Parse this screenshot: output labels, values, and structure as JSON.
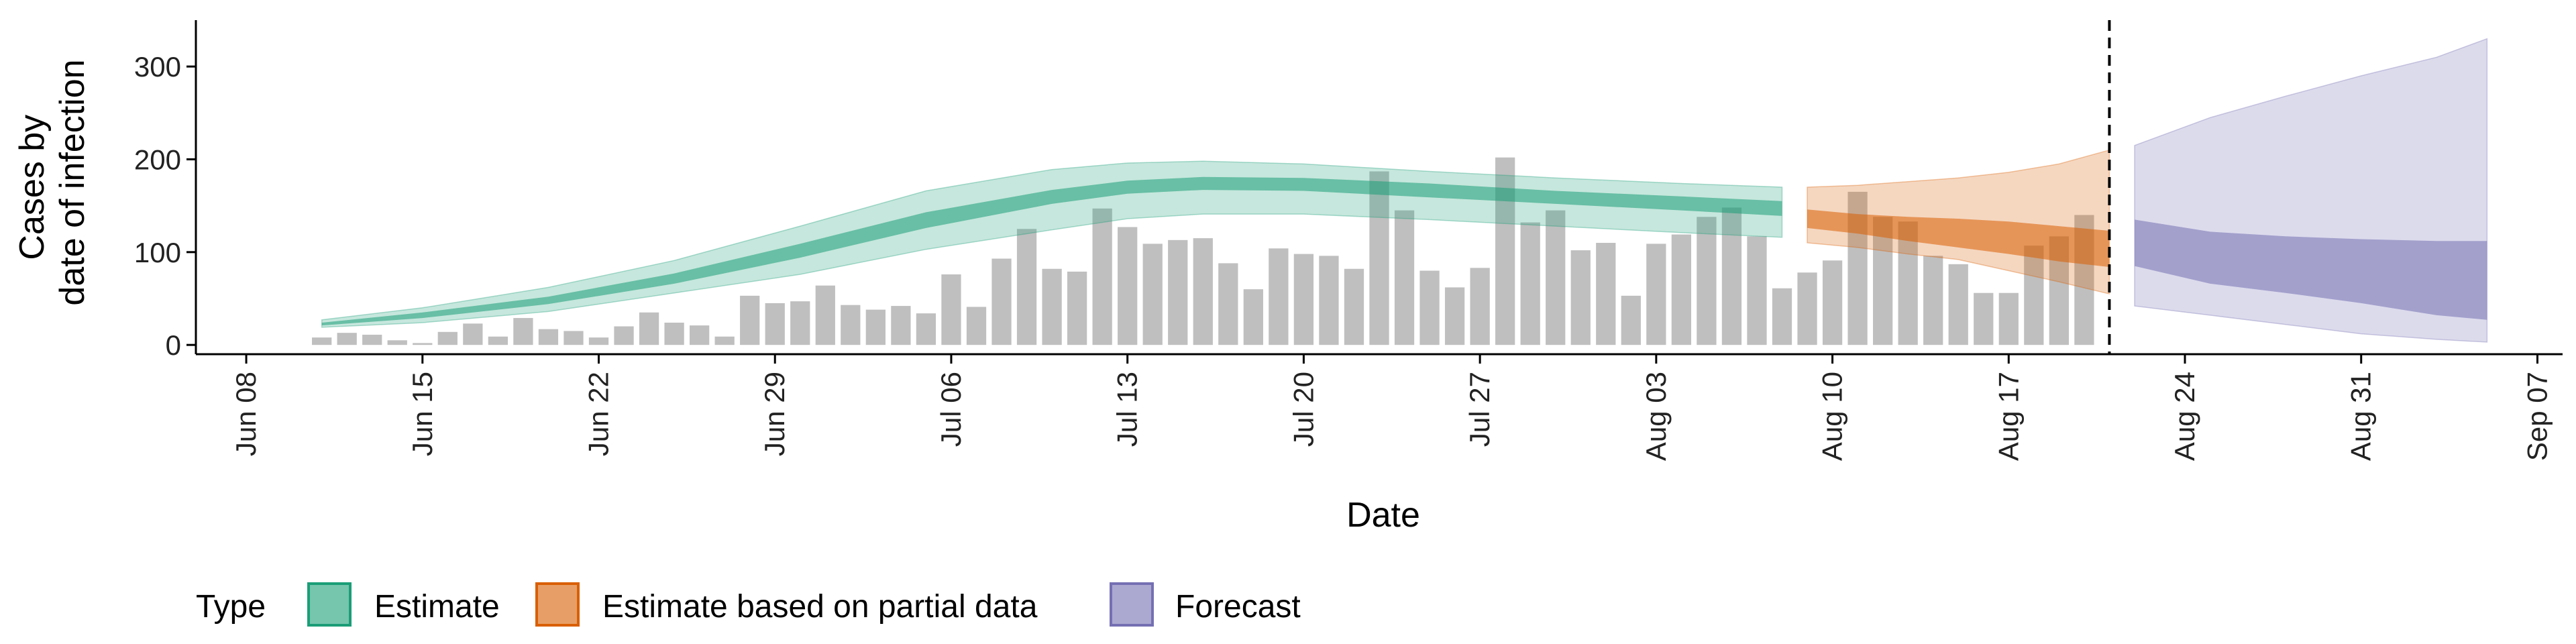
{
  "chart_data": {
    "type": "bar",
    "xlabel": "Date",
    "ylabel_lines": [
      "Cases by",
      "date of infection"
    ],
    "x_range": [
      "2020-06-06",
      "2020-09-08"
    ],
    "ylim": [
      -10,
      350
    ],
    "y_ticks": [
      0,
      100,
      200,
      300
    ],
    "x_ticks": [
      {
        "date": "2020-06-08",
        "label": "Jun 08"
      },
      {
        "date": "2020-06-15",
        "label": "Jun 15"
      },
      {
        "date": "2020-06-22",
        "label": "Jun 22"
      },
      {
        "date": "2020-06-29",
        "label": "Jun 29"
      },
      {
        "date": "2020-07-06",
        "label": "Jul 06"
      },
      {
        "date": "2020-07-13",
        "label": "Jul 13"
      },
      {
        "date": "2020-07-20",
        "label": "Jul 20"
      },
      {
        "date": "2020-07-27",
        "label": "Jul 27"
      },
      {
        "date": "2020-08-03",
        "label": "Aug 03"
      },
      {
        "date": "2020-08-10",
        "label": "Aug 10"
      },
      {
        "date": "2020-08-17",
        "label": "Aug 17"
      },
      {
        "date": "2020-08-24",
        "label": "Aug 24"
      },
      {
        "date": "2020-08-31",
        "label": "Aug 31"
      },
      {
        "date": "2020-09-07",
        "label": "Sep 07"
      }
    ],
    "forecast_cutoff_date": "2020-08-21",
    "bars": {
      "start_date": "2020-06-11",
      "values": [
        8,
        13,
        11,
        5,
        2,
        14,
        23,
        9,
        29,
        17,
        15,
        8,
        20,
        35,
        24,
        21,
        9,
        53,
        45,
        47,
        64,
        43,
        38,
        42,
        34,
        76,
        41,
        93,
        125,
        82,
        79,
        147,
        127,
        109,
        113,
        115,
        88,
        60,
        104,
        98,
        96,
        82,
        187,
        145,
        80,
        62,
        83,
        202,
        132,
        145,
        102,
        110,
        53,
        109,
        119,
        138,
        148,
        117,
        61,
        78,
        91,
        165,
        138,
        133,
        96,
        87,
        56,
        56,
        107,
        117,
        140
      ]
    },
    "series": [
      {
        "name": "Estimate",
        "color": "#1b9e77",
        "dates": [
          "2020-06-11",
          "2020-06-15",
          "2020-06-20",
          "2020-06-25",
          "2020-06-30",
          "2020-07-05",
          "2020-07-10",
          "2020-07-13",
          "2020-07-16",
          "2020-07-20",
          "2020-07-25",
          "2020-07-30",
          "2020-08-04",
          "2020-08-08"
        ],
        "outer_low": [
          19,
          24,
          36,
          56,
          76,
          103,
          124,
          136,
          141,
          141,
          135,
          128,
          121,
          116
        ],
        "inner_low": [
          21,
          29,
          44,
          66,
          94,
          126,
          152,
          163,
          167,
          166,
          159,
          152,
          145,
          139
        ],
        "inner_high": [
          24,
          35,
          52,
          77,
          109,
          143,
          167,
          177,
          181,
          180,
          174,
          166,
          160,
          155
        ],
        "outer_high": [
          27,
          40,
          62,
          91,
          128,
          166,
          189,
          196,
          198,
          195,
          187,
          180,
          174,
          170
        ]
      },
      {
        "name": "Estimate based on partial data",
        "color": "#d95f02",
        "dates": [
          "2020-08-09",
          "2020-08-11",
          "2020-08-13",
          "2020-08-15",
          "2020-08-17",
          "2020-08-19",
          "2020-08-21"
        ],
        "outer_low": [
          110,
          105,
          98,
          92,
          80,
          68,
          55
        ],
        "inner_low": [
          126,
          120,
          112,
          105,
          98,
          90,
          84
        ],
        "inner_high": [
          146,
          141,
          138,
          136,
          133,
          128,
          123
        ],
        "outer_high": [
          170,
          172,
          176,
          180,
          186,
          195,
          210
        ]
      },
      {
        "name": "Forecast",
        "color": "#7570b3",
        "dates": [
          "2020-08-22",
          "2020-08-25",
          "2020-08-28",
          "2020-08-31",
          "2020-09-03",
          "2020-09-05"
        ],
        "outer_low": [
          42,
          32,
          22,
          12,
          6,
          3
        ],
        "inner_low": [
          85,
          66,
          56,
          45,
          32,
          27
        ],
        "inner_high": [
          135,
          122,
          117,
          114,
          112,
          112
        ],
        "outer_high": [
          215,
          245,
          268,
          290,
          310,
          330
        ]
      }
    ],
    "legend": {
      "title": "Type",
      "position": "bottom",
      "entries": [
        "Estimate",
        "Estimate based on partial data",
        "Forecast"
      ]
    },
    "grid": false
  }
}
